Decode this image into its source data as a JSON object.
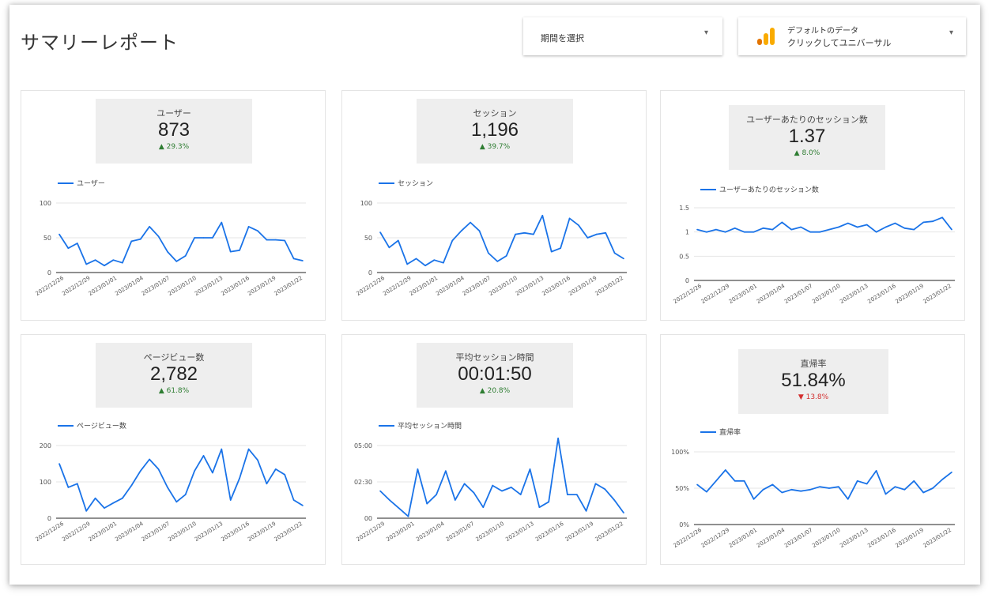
{
  "page": {
    "title": "サマリーレポート"
  },
  "date_range": {
    "label": "期間を選択"
  },
  "data_source": {
    "line1": "デフォルトのデータ",
    "line2": "クリックしてユニバーサル"
  },
  "panels": [
    {
      "scorecard": {
        "label": "ユーザー",
        "value": "873",
        "delta": "▲ 29.3%",
        "direction": "up"
      },
      "legend": "ユーザー",
      "chart_data": {
        "type": "line",
        "series": [
          {
            "name": "ユーザー",
            "values": [
              55,
              35,
              42,
              12,
              18,
              10,
              18,
              14,
              45,
              48,
              66,
              52,
              30,
              16,
              24,
              50,
              50,
              50,
              72,
              30,
              32,
              66,
              60,
              47,
              47,
              46,
              20,
              17
            ]
          }
        ],
        "ylim": [
          0,
          100
        ],
        "yticks": [
          "100",
          "50",
          "0"
        ],
        "yvals": [
          100,
          50,
          0
        ],
        "xticks": [
          "2022/12/26",
          "2022/12/29",
          "2023/01/01",
          "2023/01/04",
          "2023/01/07",
          "2023/01/10",
          "2023/01/13",
          "2023/01/16",
          "2023/01/19",
          "2023/01/22"
        ]
      }
    },
    {
      "scorecard": {
        "label": "セッション",
        "value": "1,196",
        "delta": "▲ 39.7%",
        "direction": "up"
      },
      "legend": "セッション",
      "chart_data": {
        "type": "line",
        "series": [
          {
            "name": "セッション",
            "values": [
              58,
              36,
              46,
              12,
              20,
              10,
              18,
              14,
              46,
              60,
              72,
              60,
              28,
              16,
              24,
              55,
              57,
              55,
              82,
              30,
              35,
              78,
              68,
              50,
              55,
              57,
              28,
              20
            ]
          }
        ],
        "ylim": [
          0,
          100
        ],
        "yticks": [
          "100",
          "50",
          "0"
        ],
        "yvals": [
          100,
          50,
          0
        ],
        "xticks": [
          "2022/12/26",
          "2022/12/29",
          "2023/01/01",
          "2023/01/04",
          "2023/01/07",
          "2023/01/10",
          "2023/01/13",
          "2023/01/16",
          "2023/01/19",
          "2023/01/22"
        ]
      }
    },
    {
      "scorecard": {
        "label": "ユーザーあたりのセッション数",
        "value": "1.37",
        "delta": "▲ 8.0%",
        "direction": "up"
      },
      "legend": "ユーザーあたりのセッション数",
      "chart_data": {
        "type": "line",
        "series": [
          {
            "name": "ユーザーあたりのセッション数",
            "values": [
              1.05,
              1.0,
              1.05,
              1.0,
              1.08,
              1.0,
              1.0,
              1.08,
              1.05,
              1.2,
              1.05,
              1.1,
              1.0,
              1.0,
              1.05,
              1.1,
              1.18,
              1.1,
              1.15,
              1.0,
              1.1,
              1.18,
              1.08,
              1.05,
              1.2,
              1.22,
              1.3,
              1.05
            ]
          }
        ],
        "ylim": [
          0,
          1.5
        ],
        "yticks": [
          "1.5",
          "1",
          "0.5",
          "0"
        ],
        "yvals": [
          1.5,
          1,
          0.5,
          0
        ],
        "xticks": [
          "2022/12/26",
          "2022/12/29",
          "2023/01/01",
          "2023/01/04",
          "2023/01/07",
          "2023/01/10",
          "2023/01/13",
          "2023/01/16",
          "2023/01/19",
          "2023/01/22"
        ]
      }
    },
    {
      "scorecard": {
        "label": "ページビュー数",
        "value": "2,782",
        "delta": "▲ 61.8%",
        "direction": "up"
      },
      "legend": "ページビュー数",
      "chart_data": {
        "type": "line",
        "series": [
          {
            "name": "ページビュー数",
            "values": [
              150,
              85,
              95,
              20,
              55,
              28,
              42,
              55,
              90,
              130,
              162,
              135,
              85,
              45,
              65,
              130,
              172,
              125,
              190,
              50,
              110,
              190,
              160,
              95,
              135,
              120,
              50,
              35
            ]
          }
        ],
        "ylim": [
          0,
          200
        ],
        "yticks": [
          "200",
          "100",
          "0"
        ],
        "yvals": [
          200,
          100,
          0
        ],
        "xticks": [
          "2022/12/26",
          "2022/12/29",
          "2023/01/01",
          "2023/01/04",
          "2023/01/07",
          "2023/01/10",
          "2023/01/13",
          "2023/01/16",
          "2023/01/19",
          "2023/01/22"
        ]
      }
    },
    {
      "scorecard": {
        "label": "平均セッション時間",
        "value": "00:01:50",
        "delta": "▲ 20.8%",
        "direction": "up"
      },
      "legend": "平均セッション時間",
      "chart_data": {
        "type": "line",
        "series": [
          {
            "name": "平均セッション時間",
            "values": [
              150,
              100,
              55,
              10,
              270,
              80,
              130,
              260,
              100,
              190,
              140,
              60,
              180,
              150,
              170,
              130,
              270,
              60,
              90,
              440,
              130,
              130,
              40,
              190,
              160,
              100,
              30
            ]
          }
        ],
        "ylim": [
          0,
          400
        ],
        "yticks": [
          "05:00",
          "02:30",
          "00"
        ],
        "yvals": [
          400,
          200,
          0
        ],
        "xticks": [
          "2022/12/29",
          "2023/01/01",
          "2023/01/04",
          "2023/01/07",
          "2023/01/10",
          "2023/01/13",
          "2023/01/16",
          "2023/01/19",
          "2023/01/22"
        ]
      }
    },
    {
      "scorecard": {
        "label": "直帰率",
        "value": "51.84%",
        "delta": "▼ 13.8%",
        "direction": "down"
      },
      "legend": "直帰率",
      "chart_data": {
        "type": "line",
        "series": [
          {
            "name": "直帰率",
            "values": [
              55,
              45,
              60,
              75,
              60,
              60,
              35,
              48,
              55,
              44,
              48,
              46,
              48,
              52,
              50,
              52,
              35,
              60,
              56,
              74,
              42,
              52,
              48,
              60,
              44,
              50,
              62,
              72
            ]
          }
        ],
        "ylim": [
          0,
          100
        ],
        "yticks": [
          "100%",
          "50%",
          "0%"
        ],
        "yvals": [
          100,
          50,
          0
        ],
        "xticks": [
          "2022/12/26",
          "2022/12/29",
          "2023/01/01",
          "2023/01/04",
          "2023/01/07",
          "2023/01/10",
          "2023/01/13",
          "2023/01/16",
          "2023/01/19",
          "2023/01/22"
        ]
      }
    }
  ],
  "colors": {
    "series": "#1a73e8",
    "up": "#2e7d32",
    "down": "#d32f2f"
  },
  "icons": {
    "data_source": "analytics-bars-icon",
    "dropdown": "caret-down-icon"
  }
}
